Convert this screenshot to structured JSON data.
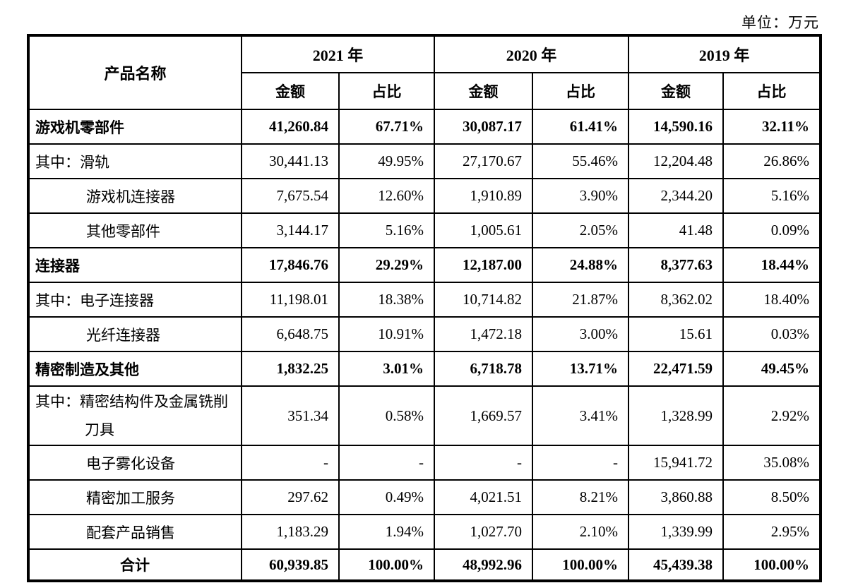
{
  "unit_label": "单位：万元",
  "table": {
    "product_header": "产品名称",
    "year_headers": [
      "2021 年",
      "2020 年",
      "2019 年"
    ],
    "sub_headers": [
      "金额",
      "占比"
    ],
    "rows": [
      {
        "label": "游戏机零部件",
        "style": "bold",
        "values": [
          "41,260.84",
          "67.71%",
          "30,087.17",
          "61.41%",
          "14,590.16",
          "32.11%"
        ]
      },
      {
        "label": "其中：滑轨",
        "style": "plain",
        "values": [
          "30,441.13",
          "49.95%",
          "27,170.67",
          "55.46%",
          "12,204.48",
          "26.86%"
        ]
      },
      {
        "label": "游戏机连接器",
        "style": "indent",
        "values": [
          "7,675.54",
          "12.60%",
          "1,910.89",
          "3.90%",
          "2,344.20",
          "5.16%"
        ]
      },
      {
        "label": "其他零部件",
        "style": "indent",
        "values": [
          "3,144.17",
          "5.16%",
          "1,005.61",
          "2.05%",
          "41.48",
          "0.09%"
        ]
      },
      {
        "label": "连接器",
        "style": "bold",
        "values": [
          "17,846.76",
          "29.29%",
          "12,187.00",
          "24.88%",
          "8,377.63",
          "18.44%"
        ]
      },
      {
        "label": "其中：电子连接器",
        "style": "plain",
        "values": [
          "11,198.01",
          "18.38%",
          "10,714.82",
          "21.87%",
          "8,362.02",
          "18.40%"
        ]
      },
      {
        "label": "光纤连接器",
        "style": "indent",
        "values": [
          "6,648.75",
          "10.91%",
          "1,472.18",
          "3.00%",
          "15.61",
          "0.03%"
        ]
      },
      {
        "label": "精密制造及其他",
        "style": "bold",
        "values": [
          "1,832.25",
          "3.01%",
          "6,718.78",
          "13.71%",
          "22,471.59",
          "49.45%"
        ]
      },
      {
        "label": "其中：精密结构件及金属铣削刀具",
        "style": "hang",
        "values": [
          "351.34",
          "0.58%",
          "1,669.57",
          "3.41%",
          "1,328.99",
          "2.92%"
        ]
      },
      {
        "label": "电子雾化设备",
        "style": "indent",
        "values": [
          "-",
          "-",
          "-",
          "-",
          "15,941.72",
          "35.08%"
        ]
      },
      {
        "label": "精密加工服务",
        "style": "indent",
        "values": [
          "297.62",
          "0.49%",
          "4,021.51",
          "8.21%",
          "3,860.88",
          "8.50%"
        ]
      },
      {
        "label": "配套产品销售",
        "style": "indent",
        "values": [
          "1,183.29",
          "1.94%",
          "1,027.70",
          "2.10%",
          "1,339.99",
          "2.95%"
        ]
      },
      {
        "label": "合计",
        "style": "total",
        "values": [
          "60,939.85",
          "100.00%",
          "48,992.96",
          "100.00%",
          "45,439.38",
          "100.00%"
        ]
      }
    ]
  }
}
